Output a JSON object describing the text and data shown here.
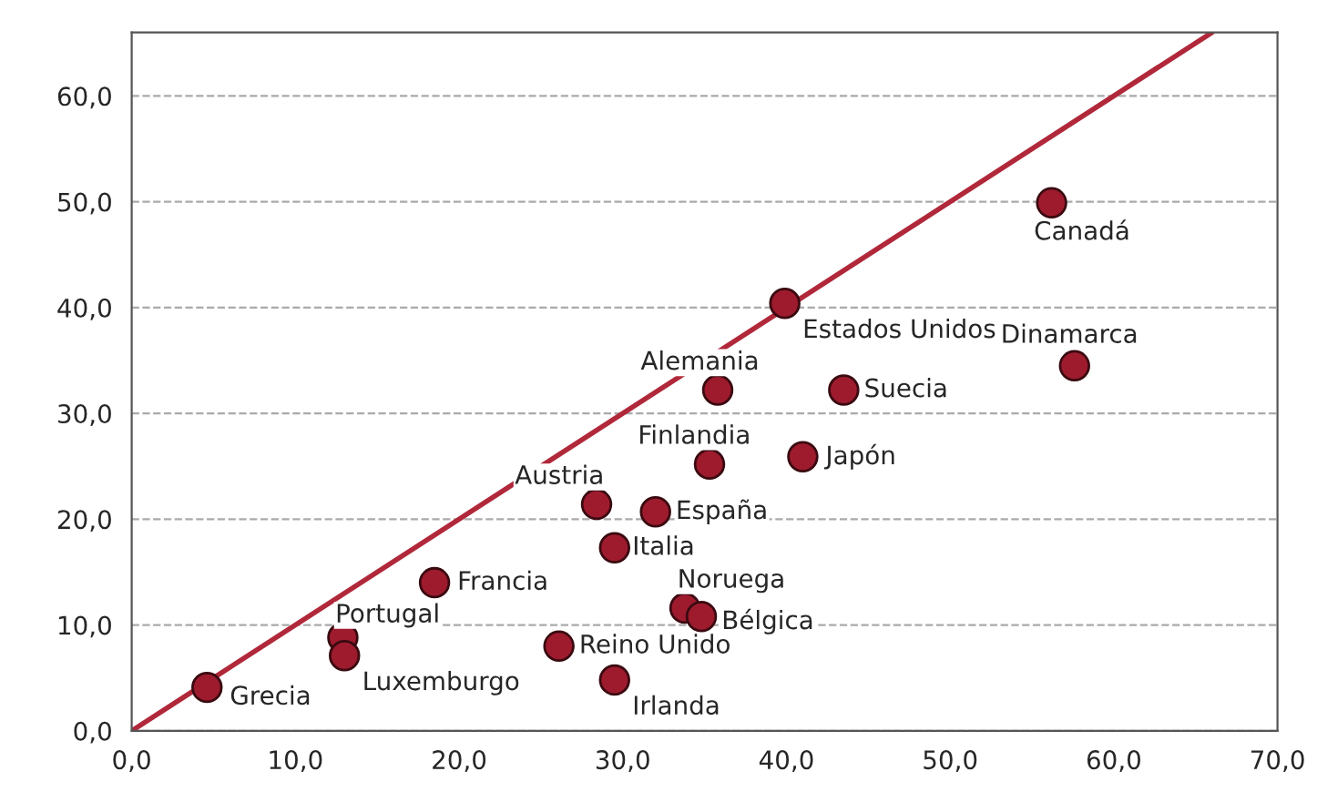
{
  "chart_data": {
    "type": "scatter",
    "xlim": [
      0,
      70
    ],
    "ylim": [
      0,
      66
    ],
    "xticks": [
      {
        "value": 0,
        "label": "0,0"
      },
      {
        "value": 10,
        "label": "10,0"
      },
      {
        "value": 20,
        "label": "20,0"
      },
      {
        "value": 30,
        "label": "30,0"
      },
      {
        "value": 40,
        "label": "40,0"
      },
      {
        "value": 50,
        "label": "50,0"
      },
      {
        "value": 60,
        "label": "60,0"
      },
      {
        "value": 70,
        "label": "70,0"
      }
    ],
    "yticks": [
      {
        "value": 0,
        "label": "0,0"
      },
      {
        "value": 10,
        "label": "10,0"
      },
      {
        "value": 20,
        "label": "20,0"
      },
      {
        "value": 30,
        "label": "30,0"
      },
      {
        "value": 40,
        "label": "40,0"
      },
      {
        "value": 50,
        "label": "50,0"
      },
      {
        "value": 60,
        "label": "60,0"
      }
    ],
    "grid": "y",
    "marker": "circle",
    "series": [
      {
        "type": "line",
        "marker": "none",
        "color": "#b0283a",
        "x": [
          0,
          66
        ],
        "values": [
          0,
          66
        ]
      },
      {
        "color": "#9e1b2e",
        "x": [
          4.6,
          12.9,
          13.0,
          18.5,
          26.1,
          29.5,
          28.4,
          32.0,
          29.5,
          33.8,
          34.8,
          35.3,
          35.8,
          39.9,
          43.5,
          41.0,
          56.2,
          57.6
        ],
        "values": [
          4.1,
          8.8,
          7.1,
          14.0,
          8.0,
          4.8,
          21.4,
          20.7,
          17.3,
          11.6,
          10.8,
          25.2,
          32.2,
          40.4,
          32.2,
          25.9,
          49.9,
          34.5
        ]
      }
    ],
    "annotations": [
      {
        "text": "Grecia",
        "x": 4.6,
        "y": 4.1
      },
      {
        "text": "Portugal",
        "x": 12.9,
        "y": 8.8
      },
      {
        "text": "Luxemburgo",
        "x": 13.0,
        "y": 7.1
      },
      {
        "text": "Francia",
        "x": 18.5,
        "y": 14.0
      },
      {
        "text": "Reino Unido",
        "x": 26.1,
        "y": 8.0
      },
      {
        "text": "Irlanda",
        "x": 29.5,
        "y": 4.8
      },
      {
        "text": "Austria",
        "x": 28.4,
        "y": 21.4
      },
      {
        "text": "España",
        "x": 32.0,
        "y": 20.7
      },
      {
        "text": "Italia",
        "x": 29.5,
        "y": 17.3
      },
      {
        "text": "Noruega",
        "x": 33.8,
        "y": 11.6
      },
      {
        "text": "Bélgica",
        "x": 34.8,
        "y": 10.8
      },
      {
        "text": "Finlandia",
        "x": 35.3,
        "y": 25.2
      },
      {
        "text": "Alemania",
        "x": 35.8,
        "y": 32.2
      },
      {
        "text": "Estados Unidos",
        "x": 39.9,
        "y": 40.4
      },
      {
        "text": "Suecia",
        "x": 43.5,
        "y": 32.2
      },
      {
        "text": "Japón",
        "x": 41.0,
        "y": 25.9
      },
      {
        "text": "Canadá",
        "x": 56.2,
        "y": 49.9
      },
      {
        "text": "Dinamarca",
        "x": 57.6,
        "y": 34.5
      }
    ]
  }
}
